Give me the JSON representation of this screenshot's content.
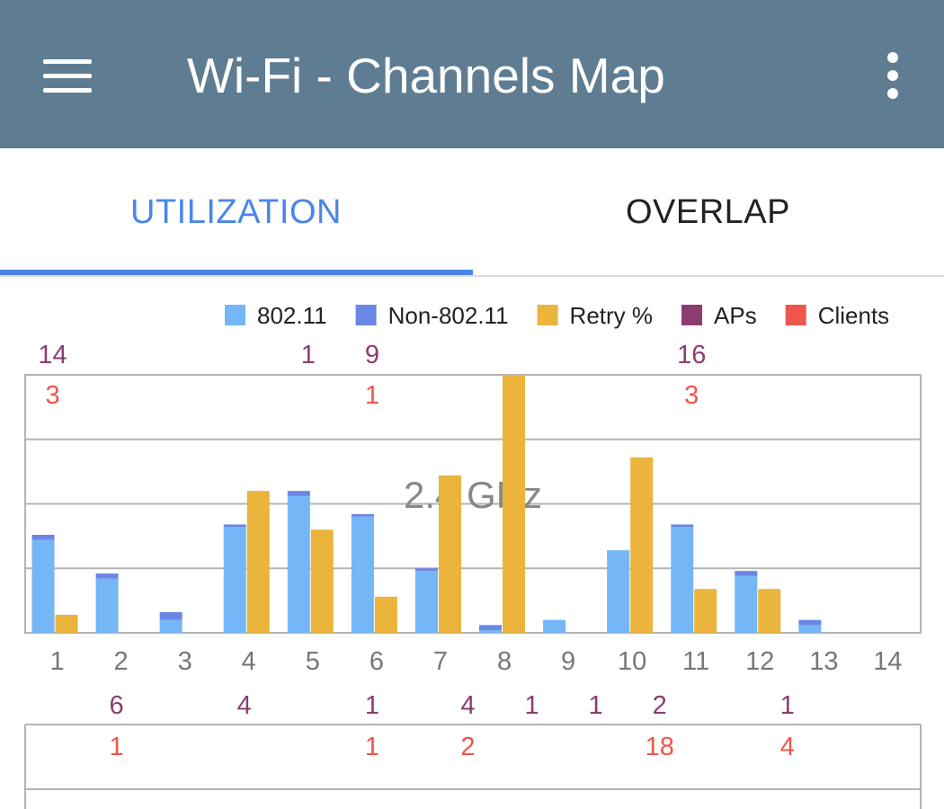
{
  "app_bar": {
    "title": "Wi-Fi - Channels Map",
    "menu_icon": "hamburger-menu-icon",
    "more_icon": "more-vertical-icon",
    "background": "#5f7d92"
  },
  "tabs": [
    {
      "label": "UTILIZATION",
      "selected": true
    },
    {
      "label": "OVERLAP",
      "selected": false
    }
  ],
  "legend": [
    {
      "label": "802.11",
      "color": "#74b6f6"
    },
    {
      "label": "Non-802.11",
      "color": "#6a87e6"
    },
    {
      "label": "Retry %",
      "color": "#eab43d"
    },
    {
      "label": "APs",
      "color": "#8b3d70"
    },
    {
      "label": "Clients",
      "color": "#f0554c"
    }
  ],
  "colors": {
    "aps_text": "#8b3d70",
    "clients_text": "#f0554c",
    "grid": "#b4b4b4",
    "watermark": "#888888",
    "tick_label": "#777777"
  },
  "chart_data": [
    {
      "type": "bar",
      "title": "2.4 GHz",
      "grid": true,
      "ylim": [
        0,
        100
      ],
      "categories": [
        "1",
        "2",
        "3",
        "4",
        "5",
        "6",
        "7",
        "8",
        "9",
        "10",
        "11",
        "12",
        "13",
        "14"
      ],
      "series": [
        {
          "name": "802.11",
          "values": [
            36,
            21,
            5,
            41,
            53,
            45,
            24,
            1,
            5,
            32,
            41,
            22,
            3,
            0
          ]
        },
        {
          "name": "Non-802.11",
          "values": [
            2,
            2,
            3,
            1,
            2,
            1,
            1,
            2,
            0,
            0,
            1,
            2,
            2,
            0
          ]
        },
        {
          "name": "Retry %",
          "values": [
            7,
            0,
            0,
            55,
            40,
            14,
            61,
            100,
            0,
            68,
            17,
            17,
            0,
            0
          ]
        }
      ],
      "aps_labels": [
        {
          "channel": "1",
          "value": "14"
        },
        {
          "channel": "5",
          "value": "1"
        },
        {
          "channel": "6",
          "value": "9"
        },
        {
          "channel": "11",
          "value": "16"
        }
      ],
      "clients_labels": [
        {
          "channel": "1",
          "value": "3"
        },
        {
          "channel": "6",
          "value": "1"
        },
        {
          "channel": "11",
          "value": "3"
        }
      ]
    },
    {
      "type": "bar",
      "grid": true,
      "aps_labels": [
        {
          "channel": "2",
          "value": "6"
        },
        {
          "channel": "4",
          "value": "4"
        },
        {
          "channel": "6",
          "value": "1"
        },
        {
          "channel": "7.5",
          "value": "4"
        },
        {
          "channel": "8.5",
          "value": "1"
        },
        {
          "channel": "9.5",
          "value": "1"
        },
        {
          "channel": "10.5",
          "value": "2"
        },
        {
          "channel": "12.5",
          "value": "1"
        }
      ],
      "clients_labels": [
        {
          "channel": "2",
          "value": "1"
        },
        {
          "channel": "6",
          "value": "1"
        },
        {
          "channel": "7.5",
          "value": "2"
        },
        {
          "channel": "10.5",
          "value": "18"
        },
        {
          "channel": "12.5",
          "value": "4"
        }
      ]
    }
  ]
}
